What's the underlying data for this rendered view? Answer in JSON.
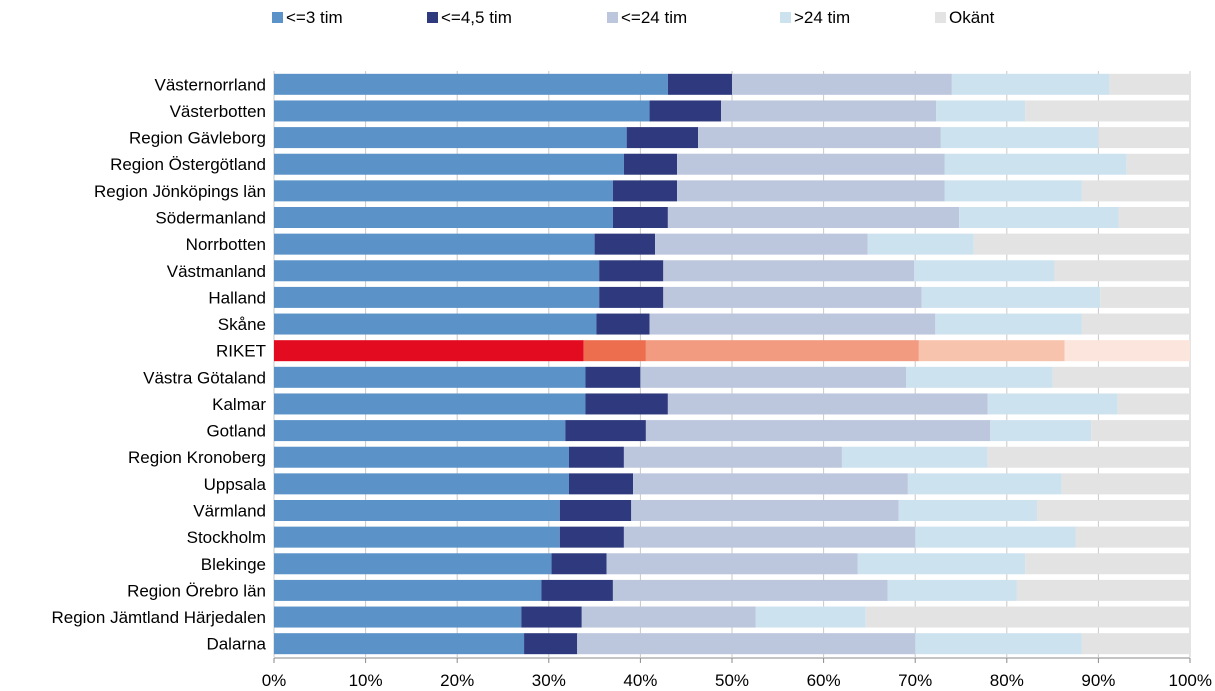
{
  "chart_data": {
    "type": "bar",
    "orientation": "horizontal",
    "stacked": true,
    "normalized": true,
    "legend_position": "top",
    "grid": "vertical",
    "xlim": [
      0,
      100
    ],
    "tick_labels": [
      "0%",
      "10%",
      "20%",
      "30%",
      "40%",
      "50%",
      "60%",
      "70%",
      "80%",
      "90%",
      "100%"
    ],
    "categories": [
      "Västernorrland",
      "Västerbotten",
      "Region Gävleborg",
      "Region Östergötland",
      "Region Jönköpings län",
      "Södermanland",
      "Norrbotten",
      "Västmanland",
      "Halland",
      "Skåne",
      "RIKET",
      "Västra Götaland",
      "Kalmar",
      "Gotland",
      "Region Kronoberg",
      "Uppsala",
      "Värmland",
      "Stockholm",
      "Blekinge",
      "Region Örebro län",
      "Region Jämtland Härjedalen",
      "Dalarna"
    ],
    "series": [
      {
        "name": "<=3 tim",
        "color": "#5b93c9",
        "values": [
          43,
          41,
          38.5,
          38.2,
          37,
          37,
          35,
          35.5,
          35.5,
          35.2,
          33.8,
          34,
          34,
          31.8,
          32.2,
          32.2,
          31.2,
          31.2,
          30.3,
          29.2,
          27,
          27.3
        ]
      },
      {
        "name": "<=4,5 tim",
        "color": "#2f3a7e",
        "values": [
          7,
          7.8,
          7.8,
          5.8,
          7,
          6,
          6.6,
          7,
          7,
          5.8,
          6.8,
          6,
          9,
          8.8,
          6,
          7,
          7.8,
          7,
          6,
          7.8,
          6.6,
          5.8
        ]
      },
      {
        "name": "<=24 tim",
        "color": "#bcc6dd",
        "values": [
          24,
          23.5,
          26.5,
          29.2,
          29.2,
          31.8,
          23.2,
          27.4,
          28.2,
          31.2,
          29.8,
          29,
          34.9,
          37.6,
          23.8,
          30,
          29.2,
          31.8,
          27.4,
          30,
          19,
          36.9
        ]
      },
      {
        "name": ">24 tim",
        "color": "#cde2ef",
        "values": [
          17.2,
          9.7,
          17.2,
          19.9,
          15,
          17.4,
          11.6,
          15.3,
          19.5,
          16,
          15.9,
          16,
          14.2,
          11,
          15.9,
          16.8,
          15.1,
          17.5,
          18.3,
          14.1,
          12,
          18.2
        ]
      },
      {
        "name": "Okänt",
        "color": "#e3e3e3",
        "values": [
          8.8,
          18,
          10,
          6.8,
          11.8,
          7.8,
          23.6,
          14.8,
          9.8,
          11.8,
          13.7,
          15,
          7.9,
          10.8,
          22.1,
          14,
          16.7,
          12.5,
          18,
          18.9,
          35.4,
          11.8
        ]
      }
    ],
    "highlight": {
      "category": "RIKET",
      "colors": [
        "#e30b1f",
        "#ec6e4f",
        "#f39b80",
        "#f8c3ad",
        "#fce5dc"
      ]
    },
    "grid_color": "#c8c8c8"
  }
}
